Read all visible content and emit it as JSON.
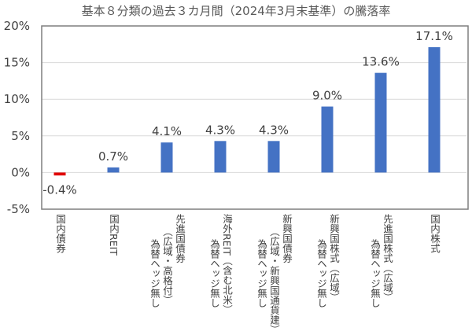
{
  "chart_data": {
    "type": "bar",
    "title": "基本８分類の過去３カ月間（2024年3月末基準）の騰落率",
    "categories": [
      [
        "国内債券"
      ],
      [
        "国内REIT"
      ],
      [
        "先進国債券",
        "（広域・高格付）",
        "為替ヘッジ無し"
      ],
      [
        "海外REIT（含む北米）",
        "為替ヘッジ無し"
      ],
      [
        "新興国債券",
        "（広域・新興国通貨建）",
        "為替ヘッジ無し"
      ],
      [
        "新興国株式（広域）",
        "為替ヘッジ無し"
      ],
      [
        "先進国株式（広域）",
        "為替ヘッジ無し"
      ],
      [
        "国内株式"
      ]
    ],
    "values": [
      -0.4,
      0.7,
      4.1,
      4.3,
      4.3,
      9.0,
      13.6,
      17.1
    ],
    "data_labels": [
      "-0.4%",
      "0.7%",
      "4.1%",
      "4.3%",
      "4.3%",
      "9.0%",
      "13.6%",
      "17.1%"
    ],
    "ylim": [
      -5,
      20
    ],
    "yticks": [
      "-5%",
      "0%",
      "5%",
      "10%",
      "15%",
      "20%"
    ],
    "ytick_values": [
      -5,
      0,
      5,
      10,
      15,
      20
    ],
    "grid": true,
    "colors": {
      "positive": "#4472C4",
      "negative": "#E00000",
      "grid": "#D9D9D9",
      "frame": "#7F7F7F"
    }
  }
}
